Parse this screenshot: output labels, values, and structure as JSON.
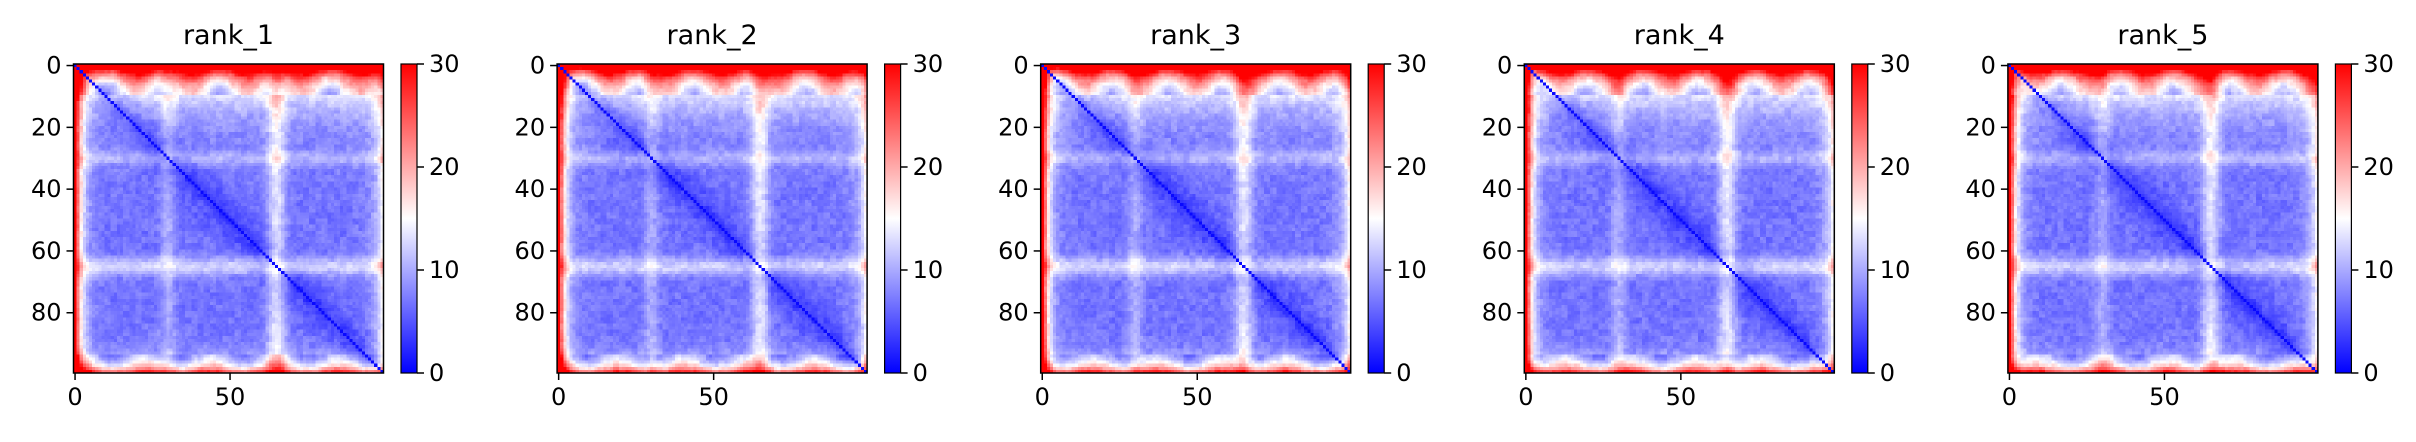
{
  "chart_data": [
    {
      "type": "heatmap",
      "title": "rank_1",
      "xlabel": "",
      "ylabel": "",
      "xticks": [
        "0",
        "50"
      ],
      "yticks": [
        "0",
        "20",
        "40",
        "60",
        "80"
      ],
      "xlim": [
        0,
        100
      ],
      "ylim": [
        100,
        0
      ],
      "colorbar": {
        "min": 0,
        "max": 30,
        "ticks": [
          "0",
          "10",
          "20",
          "30"
        ]
      },
      "colormap": {
        "low": "#0000ff",
        "mid": "#ffffff",
        "high": "#ff0000"
      },
      "grid": false
    },
    {
      "type": "heatmap",
      "title": "rank_2",
      "xlabel": "",
      "ylabel": "",
      "xticks": [
        "0",
        "50"
      ],
      "yticks": [
        "0",
        "20",
        "40",
        "60",
        "80"
      ],
      "xlim": [
        0,
        100
      ],
      "ylim": [
        100,
        0
      ],
      "colorbar": {
        "min": 0,
        "max": 30,
        "ticks": [
          "0",
          "10",
          "20",
          "30"
        ]
      },
      "colormap": {
        "low": "#0000ff",
        "mid": "#ffffff",
        "high": "#ff0000"
      },
      "grid": false
    },
    {
      "type": "heatmap",
      "title": "rank_3",
      "xlabel": "",
      "ylabel": "",
      "xticks": [
        "0",
        "50"
      ],
      "yticks": [
        "0",
        "20",
        "40",
        "60",
        "80"
      ],
      "xlim": [
        0,
        100
      ],
      "ylim": [
        100,
        0
      ],
      "colorbar": {
        "min": 0,
        "max": 30,
        "ticks": [
          "0",
          "10",
          "20",
          "30"
        ]
      },
      "colormap": {
        "low": "#0000ff",
        "mid": "#ffffff",
        "high": "#ff0000"
      },
      "grid": false
    },
    {
      "type": "heatmap",
      "title": "rank_4",
      "xlabel": "",
      "ylabel": "",
      "xticks": [
        "0",
        "50"
      ],
      "yticks": [
        "0",
        "20",
        "40",
        "60",
        "80"
      ],
      "xlim": [
        0,
        100
      ],
      "ylim": [
        100,
        0
      ],
      "colorbar": {
        "min": 0,
        "max": 30,
        "ticks": [
          "0",
          "10",
          "20",
          "30"
        ]
      },
      "colormap": {
        "low": "#0000ff",
        "mid": "#ffffff",
        "high": "#ff0000"
      },
      "grid": false
    },
    {
      "type": "heatmap",
      "title": "rank_5",
      "xlabel": "",
      "ylabel": "",
      "xticks": [
        "0",
        "50"
      ],
      "yticks": [
        "0",
        "20",
        "40",
        "60",
        "80"
      ],
      "xlim": [
        0,
        100
      ],
      "ylim": [
        100,
        0
      ],
      "colorbar": {
        "min": 0,
        "max": 30,
        "ticks": [
          "0",
          "10",
          "20",
          "30"
        ]
      },
      "colormap": {
        "low": "#0000ff",
        "mid": "#ffffff",
        "high": "#ff0000"
      },
      "grid": false
    }
  ]
}
